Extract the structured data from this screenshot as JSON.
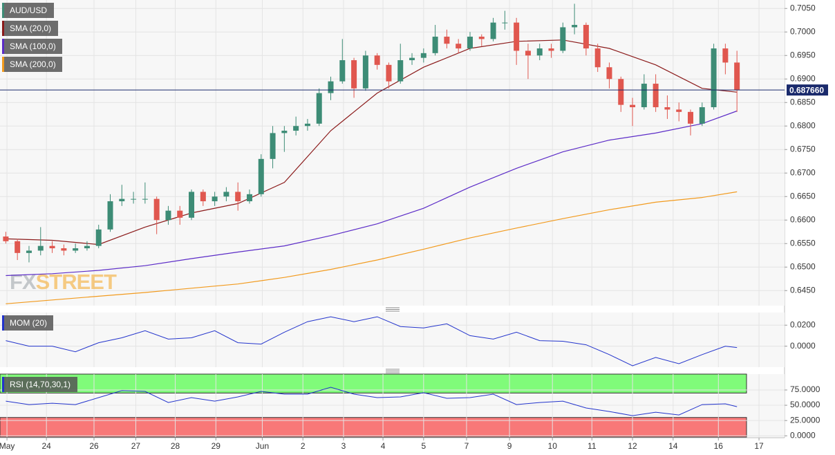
{
  "chart_data": [
    {
      "type": "candlestick",
      "name": "AUD/USD",
      "up_color": "#3d8c76",
      "down_color": "#e0574f",
      "x": [
        0,
        1,
        2,
        3,
        4,
        5,
        6,
        7,
        8,
        9,
        10,
        11,
        12,
        13,
        14,
        15,
        16,
        17,
        18,
        19,
        20,
        21,
        22,
        23,
        24,
        25,
        26,
        27,
        28,
        29,
        30,
        31,
        32,
        33,
        34,
        35,
        36,
        37,
        38,
        39,
        40,
        41,
        42,
        43,
        44,
        45,
        46,
        47,
        48,
        49,
        50,
        51,
        52,
        53,
        54,
        55,
        56,
        57,
        58,
        59,
        60,
        61,
        62,
        63
      ],
      "open": [
        0.6565,
        0.6555,
        0.653,
        0.6535,
        0.6545,
        0.654,
        0.6535,
        0.654,
        0.6545,
        0.658,
        0.664,
        0.6645,
        0.6645,
        0.6645,
        0.66,
        0.662,
        0.6605,
        0.666,
        0.664,
        0.665,
        0.666,
        0.664,
        0.6655,
        0.673,
        0.6785,
        0.679,
        0.68,
        0.6805,
        0.687,
        0.6895,
        0.694,
        0.688,
        0.695,
        0.693,
        0.6895,
        0.694,
        0.6945,
        0.6955,
        0.699,
        0.6975,
        0.6965,
        0.699,
        0.6985,
        0.702,
        0.702,
        0.696,
        0.695,
        0.6965,
        0.696,
        0.701,
        0.7015,
        0.6965,
        0.6925,
        0.69,
        0.6845,
        0.684,
        0.689,
        0.684,
        0.6835,
        0.683,
        0.6805,
        0.684,
        0.6965,
        0.6935
      ],
      "high": [
        0.6575,
        0.656,
        0.6545,
        0.6585,
        0.6555,
        0.6548,
        0.655,
        0.6555,
        0.659,
        0.6655,
        0.6675,
        0.666,
        0.668,
        0.665,
        0.663,
        0.663,
        0.6665,
        0.6665,
        0.666,
        0.667,
        0.668,
        0.6665,
        0.674,
        0.68,
        0.68,
        0.682,
        0.6815,
        0.688,
        0.6905,
        0.6985,
        0.6945,
        0.696,
        0.6955,
        0.6935,
        0.6975,
        0.6955,
        0.6965,
        0.7015,
        0.7005,
        0.6985,
        0.7,
        0.6995,
        0.703,
        0.7045,
        0.703,
        0.6975,
        0.6975,
        0.6975,
        0.702,
        0.706,
        0.702,
        0.6975,
        0.6935,
        0.6905,
        0.686,
        0.691,
        0.691,
        0.6865,
        0.685,
        0.6835,
        0.685,
        0.6975,
        0.6975,
        0.696
      ],
      "low": [
        0.655,
        0.6515,
        0.651,
        0.6525,
        0.653,
        0.6525,
        0.653,
        0.6535,
        0.654,
        0.6575,
        0.663,
        0.6635,
        0.6635,
        0.657,
        0.659,
        0.659,
        0.66,
        0.663,
        0.663,
        0.664,
        0.662,
        0.6635,
        0.665,
        0.671,
        0.6745,
        0.678,
        0.679,
        0.68,
        0.6855,
        0.689,
        0.686,
        0.6875,
        0.692,
        0.688,
        0.689,
        0.693,
        0.6935,
        0.695,
        0.6965,
        0.6955,
        0.696,
        0.697,
        0.698,
        0.7005,
        0.693,
        0.69,
        0.694,
        0.6945,
        0.6955,
        0.6995,
        0.695,
        0.6915,
        0.688,
        0.683,
        0.68,
        0.6835,
        0.683,
        0.6815,
        0.681,
        0.678,
        0.68,
        0.6835,
        0.691,
        0.683
      ],
      "close": [
        0.6555,
        0.653,
        0.6535,
        0.6545,
        0.654,
        0.6535,
        0.654,
        0.6545,
        0.658,
        0.664,
        0.6645,
        0.6645,
        0.6645,
        0.66,
        0.662,
        0.6605,
        0.666,
        0.664,
        0.665,
        0.666,
        0.664,
        0.6655,
        0.673,
        0.6785,
        0.679,
        0.68,
        0.6805,
        0.687,
        0.6895,
        0.694,
        0.688,
        0.695,
        0.693,
        0.6895,
        0.694,
        0.6945,
        0.6955,
        0.699,
        0.6975,
        0.6965,
        0.699,
        0.6985,
        0.702,
        0.702,
        0.696,
        0.695,
        0.6965,
        0.696,
        0.701,
        0.7015,
        0.6965,
        0.6925,
        0.69,
        0.6845,
        0.684,
        0.689,
        0.684,
        0.6835,
        0.683,
        0.6805,
        0.684,
        0.6965,
        0.6935,
        0.6877
      ],
      "series": [
        {
          "name": "SMA (20,0)",
          "color": "#8b1a1a",
          "x": [
            0,
            4,
            8,
            12,
            16,
            20,
            24,
            28,
            32,
            36,
            40,
            44,
            48,
            52,
            56,
            60,
            63
          ],
          "values": [
            0.656,
            0.6557,
            0.6548,
            0.6585,
            0.6615,
            0.6635,
            0.668,
            0.679,
            0.687,
            0.6925,
            0.6965,
            0.698,
            0.6983,
            0.6965,
            0.693,
            0.688,
            0.6872
          ]
        },
        {
          "name": "SMA (100,0)",
          "color": "#5b2bc7",
          "x": [
            0,
            4,
            8,
            12,
            16,
            20,
            24,
            28,
            32,
            36,
            40,
            44,
            48,
            52,
            56,
            60,
            63
          ],
          "values": [
            0.6482,
            0.6486,
            0.6493,
            0.6503,
            0.6518,
            0.6532,
            0.6545,
            0.6567,
            0.6592,
            0.6625,
            0.667,
            0.671,
            0.6745,
            0.677,
            0.6785,
            0.6805,
            0.6832
          ]
        },
        {
          "name": "SMA (200,0)",
          "color": "#f29a1d",
          "x": [
            0,
            4,
            8,
            12,
            16,
            20,
            24,
            28,
            32,
            36,
            40,
            44,
            48,
            52,
            56,
            60,
            63
          ],
          "values": [
            0.6422,
            0.643,
            0.6438,
            0.6446,
            0.6455,
            0.6464,
            0.6478,
            0.6495,
            0.6515,
            0.6538,
            0.6562,
            0.6583,
            0.6603,
            0.6622,
            0.6638,
            0.6648,
            0.666
          ]
        }
      ],
      "last_price": {
        "value": 0.68766,
        "label": "0.687660"
      },
      "watermark": [
        "FX",
        "STREET"
      ],
      "xlim": [
        -0.5,
        67.1
      ],
      "xticks": [
        {
          "value": 0.1,
          "label": "May"
        },
        {
          "value": 3.5,
          "label": "24"
        },
        {
          "value": 7.6,
          "label": "26"
        },
        {
          "value": 11.2,
          "label": "27"
        },
        {
          "value": 14.6,
          "label": "28"
        },
        {
          "value": 18.1,
          "label": "29"
        },
        {
          "value": 22.1,
          "label": "Jun"
        },
        {
          "value": 25.6,
          "label": "2"
        },
        {
          "value": 29.1,
          "label": "3"
        },
        {
          "value": 32.5,
          "label": "4"
        },
        {
          "value": 36.0,
          "label": "5"
        },
        {
          "value": 39.7,
          "label": "7"
        },
        {
          "value": 43.4,
          "label": "9"
        },
        {
          "value": 47.1,
          "label": "10"
        },
        {
          "value": 50.5,
          "label": "11"
        },
        {
          "value": 54.0,
          "label": "12"
        },
        {
          "value": 57.5,
          "label": "14"
        },
        {
          "value": 61.4,
          "label": "16"
        },
        {
          "value": 64.9,
          "label": "17"
        }
      ],
      "ylim": [
        0.6418,
        0.7068
      ],
      "yticks": [
        {
          "value": 0.645,
          "label": "0.6450"
        },
        {
          "value": 0.65,
          "label": "0.6500"
        },
        {
          "value": 0.655,
          "label": "0.6550"
        },
        {
          "value": 0.66,
          "label": "0.6600"
        },
        {
          "value": 0.665,
          "label": "0.6650"
        },
        {
          "value": 0.67,
          "label": "0.6700"
        },
        {
          "value": 0.675,
          "label": "0.6750"
        },
        {
          "value": 0.68,
          "label": "0.6800"
        },
        {
          "value": 0.685,
          "label": "0.6850"
        },
        {
          "value": 0.69,
          "label": "0.6900"
        },
        {
          "value": 0.695,
          "label": "0.6950"
        },
        {
          "value": 0.7,
          "label": "0.7000"
        },
        {
          "value": 0.705,
          "label": "0.7050"
        }
      ],
      "grid": true
    },
    {
      "type": "line",
      "series": [
        {
          "name": "MOM (20)",
          "color": "#2233cc",
          "x": [
            0,
            2,
            4,
            6,
            8,
            10,
            12,
            14,
            16,
            18,
            20,
            22,
            24,
            26,
            28,
            30,
            32,
            34,
            36,
            38,
            40,
            42,
            44,
            46,
            48,
            50,
            52,
            54,
            56,
            58,
            60,
            62,
            63
          ],
          "values": [
            0.0053,
            0,
            0,
            -0.0053,
            0.0033,
            0.008,
            0.0147,
            0.0067,
            0.008,
            0.0147,
            0.0033,
            0.002,
            0.0133,
            0.0233,
            0.028,
            0.0233,
            0.028,
            0.0187,
            0.0173,
            0.0213,
            0.01,
            0.0067,
            0.0133,
            0.0053,
            0.0047,
            0.0013,
            -0.008,
            -0.0187,
            -0.0107,
            -0.0167,
            -0.008,
            0,
            -0.0013
          ]
        }
      ],
      "ylim": [
        -0.02,
        0.032
      ],
      "yticks": [
        {
          "value": 0,
          "label": "0.0000"
        },
        {
          "value": 0.02,
          "label": "0.0200"
        }
      ],
      "grid": true
    },
    {
      "type": "line",
      "overbought": 70,
      "oversold": 30,
      "overbought_color": "#80fb7a",
      "oversold_color": "#f87878",
      "series": [
        {
          "name": "RSI (14,70,30,1)",
          "color": "#2233cc",
          "x": [
            0,
            2,
            4,
            6,
            8,
            10,
            12,
            14,
            16,
            18,
            20,
            22,
            24,
            26,
            28,
            30,
            32,
            34,
            36,
            38,
            40,
            42,
            44,
            46,
            48,
            50,
            52,
            54,
            56,
            58,
            60,
            62,
            63
          ],
          "values": [
            56.8,
            51.1,
            53.4,
            51.1,
            62.5,
            73.9,
            72.7,
            54.5,
            62.5,
            56.8,
            63.6,
            72.7,
            68.2,
            68.2,
            79.5,
            68.2,
            62.5,
            63.6,
            70.5,
            61.4,
            62.5,
            68.2,
            51.1,
            54.5,
            56.8,
            45.5,
            39.8,
            33.0,
            38.6,
            34.1,
            51.1,
            52.3,
            47.7
          ]
        }
      ],
      "ylim": [
        -2,
        101
      ],
      "yticks": [
        {
          "value": 0,
          "label": "0.0000"
        },
        {
          "value": 25,
          "label": "25.0000"
        },
        {
          "value": 50,
          "label": "50.0000"
        },
        {
          "value": 75,
          "label": "75.0000"
        }
      ],
      "grid": true
    }
  ]
}
